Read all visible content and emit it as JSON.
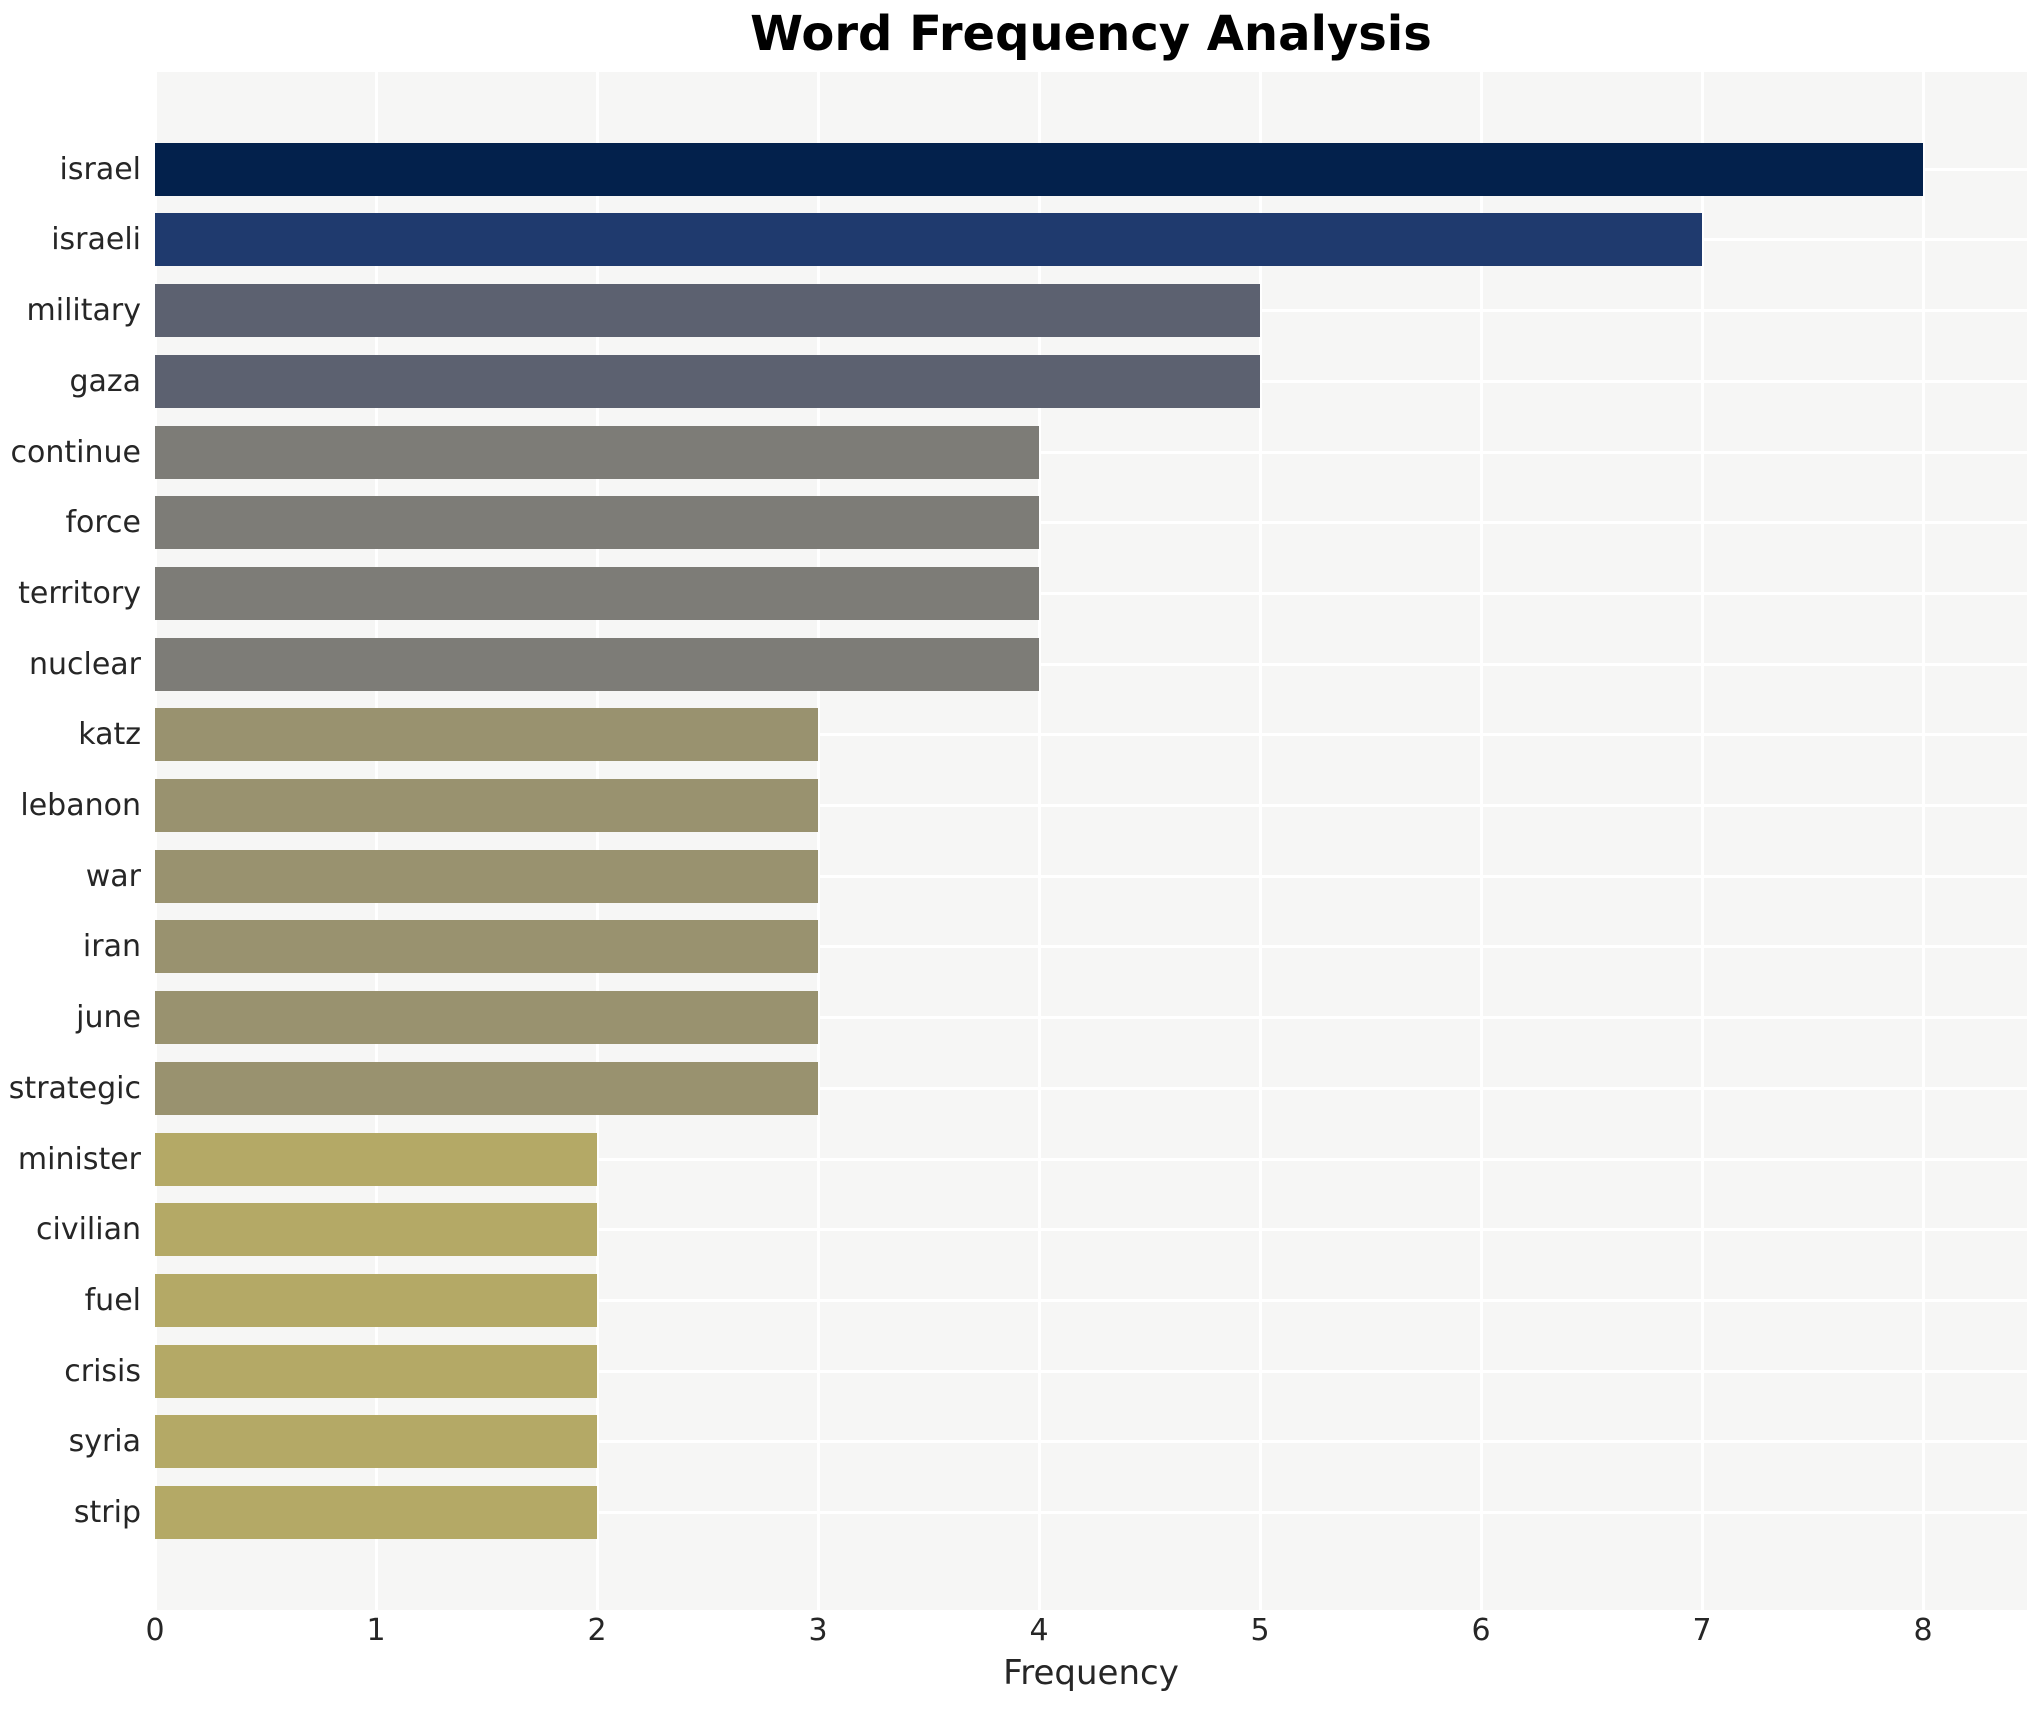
{
  "chart_data": {
    "type": "bar",
    "orientation": "horizontal",
    "title": "Word Frequency Analysis",
    "xlabel": "Frequency",
    "ylabel": "",
    "xlim": [
      0,
      8.47
    ],
    "xticks": [
      "0",
      "1",
      "2",
      "3",
      "4",
      "5",
      "6",
      "7",
      "8"
    ],
    "grid": "on",
    "legend": "none",
    "plot_background": "#f6f6f5",
    "gridline_color": "#ffffff",
    "tick_label_color": "#262626",
    "categories": [
      "israel",
      "israeli",
      "military",
      "gaza",
      "continue",
      "force",
      "territory",
      "nuclear",
      "katz",
      "lebanon",
      "war",
      "iran",
      "june",
      "strategic",
      "minister",
      "civilian",
      "fuel",
      "crisis",
      "syria",
      "strip"
    ],
    "values": [
      8,
      7,
      5,
      5,
      4,
      4,
      4,
      4,
      3,
      3,
      3,
      3,
      3,
      3,
      2,
      2,
      2,
      2,
      2,
      2
    ],
    "bar_colors": [
      "#03214c",
      "#1f3a6e",
      "#5c6170",
      "#5c6170",
      "#7d7c77",
      "#7d7c77",
      "#7d7c77",
      "#7d7c77",
      "#99926f",
      "#99926f",
      "#99926f",
      "#99926f",
      "#99926f",
      "#99926f",
      "#b4a966",
      "#b4a966",
      "#b4a966",
      "#b4a966",
      "#b4a966",
      "#b4a966"
    ]
  }
}
